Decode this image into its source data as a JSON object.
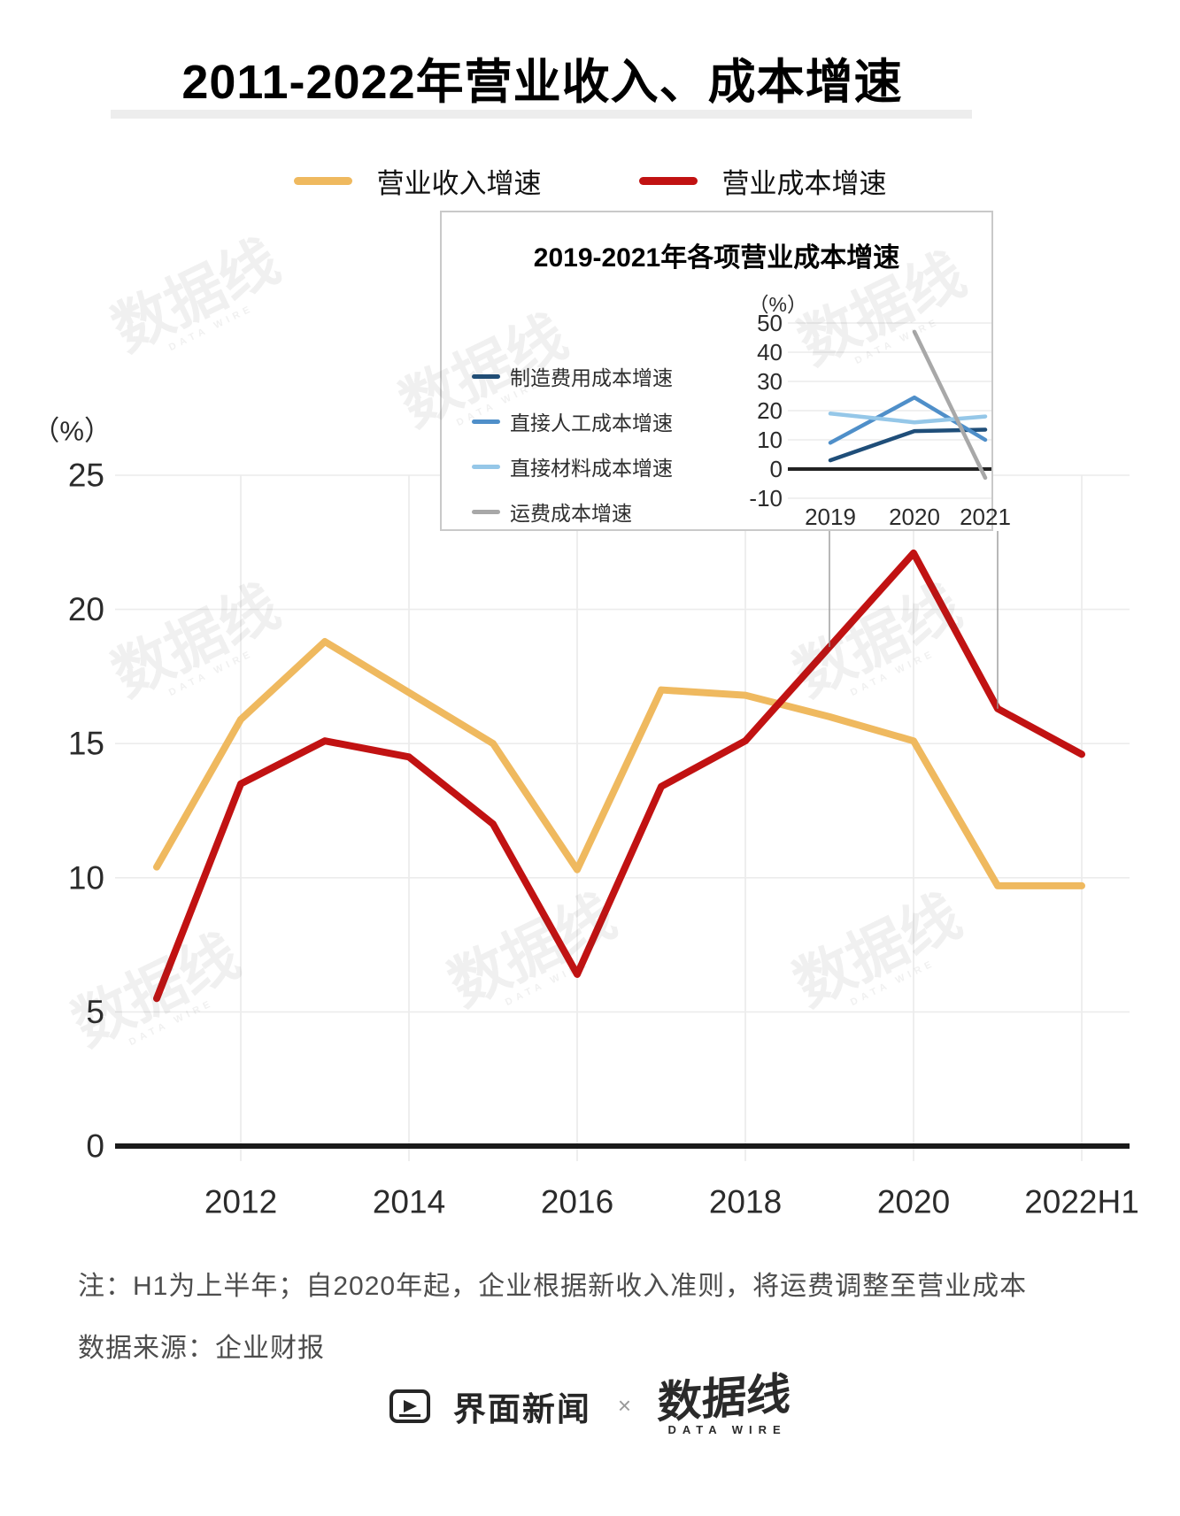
{
  "header": {
    "title": "2011-2022年营业收入、成本增速"
  },
  "notes": {
    "line1": "注：H1为上半年；自2020年起，企业根据新收入准则，将运费调整至营业成本",
    "line2": "数据来源：企业财报"
  },
  "footer": {
    "brand1": "界面新闻",
    "separator": "×",
    "brand2": "数据线",
    "brand2_caption": "DATA WIRE"
  },
  "watermark": {
    "text": "数据线",
    "caption": "DATA WIRE"
  },
  "inset": {
    "title": "2019-2021年各项营业成本增速"
  },
  "chart_data": [
    {
      "id": "main",
      "type": "line",
      "title": "2011-2022年营业收入、成本增速",
      "unit_label": "（%）",
      "x": [
        "2011",
        "2012",
        "2013",
        "2014",
        "2015",
        "2016",
        "2017",
        "2018",
        "2019",
        "2020",
        "2021",
        "2022H1"
      ],
      "x_tick_labels": [
        "2012",
        "2014",
        "2016",
        "2018",
        "2020",
        "2022H1"
      ],
      "ylim": [
        0,
        25
      ],
      "yticks": [
        0,
        5,
        10,
        15,
        20,
        25
      ],
      "grid": true,
      "legend_position": "top",
      "series": [
        {
          "name": "营业收入增速",
          "color": "#EFB95F",
          "values": [
            10.4,
            15.9,
            18.8,
            16.9,
            15.0,
            10.3,
            17.0,
            16.8,
            16.0,
            15.1,
            9.7,
            9.7
          ]
        },
        {
          "name": "营业成本增速",
          "color": "#C11212",
          "values": [
            5.5,
            13.5,
            15.1,
            14.5,
            12.0,
            6.4,
            13.4,
            15.1,
            18.6,
            22.1,
            16.3,
            14.6
          ]
        }
      ]
    },
    {
      "id": "inset",
      "type": "line",
      "title": "2019-2021年各项营业成本增速",
      "unit_label": "（%）",
      "x": [
        "2019",
        "2020",
        "2021"
      ],
      "ylim": [
        -10,
        50
      ],
      "yticks": [
        -10,
        0,
        10,
        20,
        30,
        40,
        50
      ],
      "grid": true,
      "legend_position": "left",
      "series": [
        {
          "name": "制造费用成本增速",
          "color": "#1F4E79",
          "values": [
            3,
            13,
            13.5
          ]
        },
        {
          "name": "直接人工成本增速",
          "color": "#4F8FC9",
          "values": [
            9,
            24.5,
            10
          ]
        },
        {
          "name": "直接材料成本增速",
          "color": "#95C7E8",
          "values": [
            19,
            16,
            18
          ]
        },
        {
          "name": "运费成本增速",
          "color": "#A8A8A8",
          "values": [
            null,
            47,
            -3
          ]
        }
      ]
    }
  ]
}
